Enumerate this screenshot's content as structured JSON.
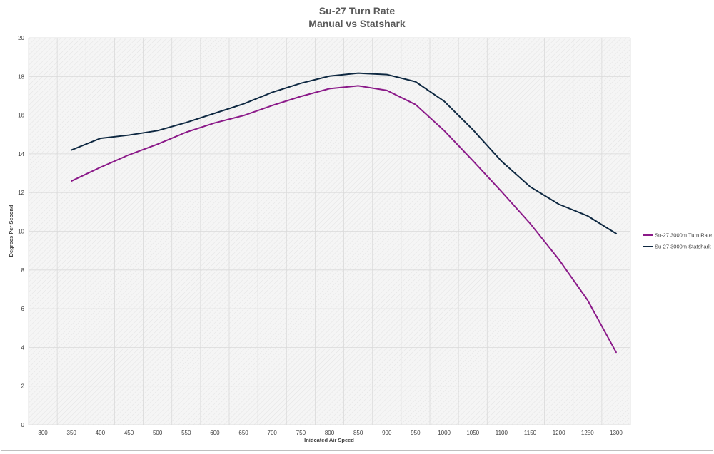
{
  "chart_data": {
    "type": "line",
    "title": "Su-27 Turn Rate",
    "subtitle": "Manual vs Statshark",
    "xlabel": "Inidcated Air Speed",
    "ylabel": "Degrees Per Second",
    "categories": [
      "300",
      "350",
      "400",
      "450",
      "500",
      "550",
      "600",
      "650",
      "700",
      "750",
      "800",
      "850",
      "900",
      "950",
      "1000",
      "1050",
      "1100",
      "1150",
      "1200",
      "1250",
      "1300"
    ],
    "yticks": [
      "0",
      "2",
      "4",
      "6",
      "8",
      "10",
      "12",
      "14",
      "16",
      "18",
      "20"
    ],
    "ylim": [
      0,
      20
    ],
    "grid": true,
    "legend_position": "right",
    "series": [
      {
        "name": "Su-27 3000m Turn Rate",
        "color": "#8b1a89",
        "values": [
          null,
          12.6,
          13.3,
          13.95,
          14.5,
          15.12,
          15.6,
          15.98,
          16.5,
          16.97,
          17.37,
          17.52,
          17.28,
          16.55,
          15.2,
          13.65,
          12.05,
          10.4,
          8.55,
          6.45,
          3.75
        ]
      },
      {
        "name": "Su-27 3000m Statshark",
        "color": "#0e2841",
        "values": [
          null,
          14.2,
          14.8,
          14.97,
          15.2,
          15.62,
          16.1,
          16.58,
          17.18,
          17.65,
          18.02,
          18.17,
          18.1,
          17.73,
          16.72,
          15.25,
          13.62,
          12.3,
          11.4,
          10.8,
          9.88
        ]
      }
    ]
  }
}
